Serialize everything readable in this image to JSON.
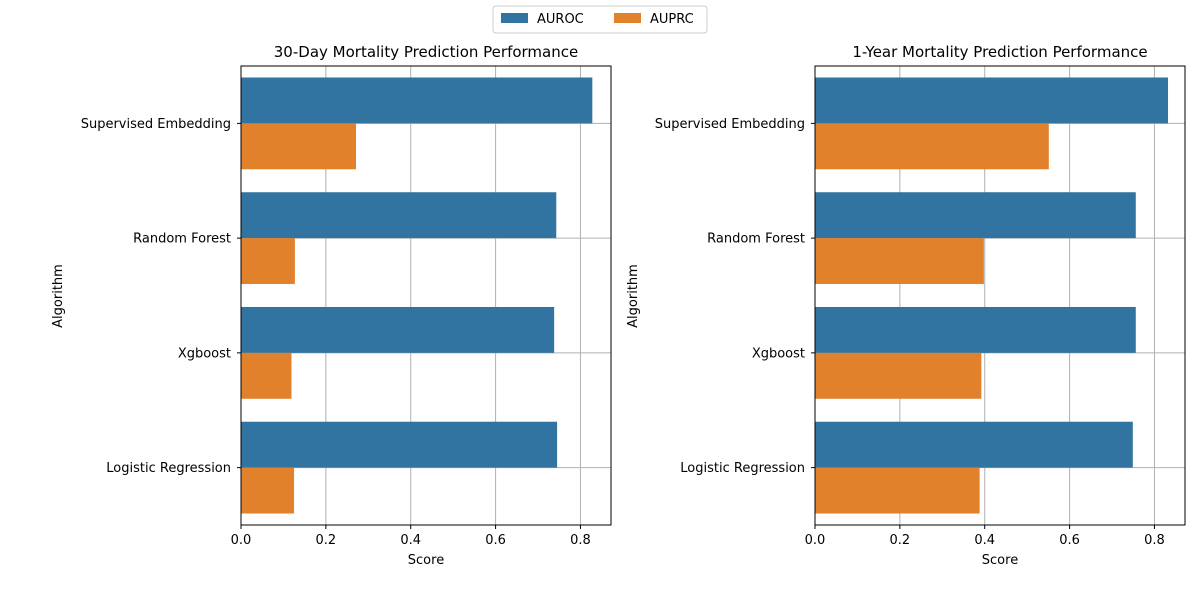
{
  "chart_data": [
    {
      "type": "bar",
      "orientation": "horizontal",
      "title": "30-Day Mortality Prediction Performance",
      "xlabel": "Score",
      "ylabel": "Algorithm",
      "categories": [
        "Supervised Embedding",
        "Random Forest",
        "Xgboost",
        "Logistic Regression"
      ],
      "series": [
        {
          "name": "AUROC",
          "color": "#3274a1",
          "values": [
            0.828,
            0.743,
            0.738,
            0.745
          ]
        },
        {
          "name": "AUPRC",
          "color": "#e1812c",
          "values": [
            0.271,
            0.127,
            0.119,
            0.125
          ]
        }
      ],
      "xlim": [
        0,
        0.872
      ],
      "xticks": [
        0.0,
        0.2,
        0.4,
        0.6,
        0.8
      ],
      "xtick_labels": [
        "0.0",
        "0.2",
        "0.4",
        "0.6",
        "0.8"
      ],
      "grid": true
    },
    {
      "type": "bar",
      "orientation": "horizontal",
      "title": "1-Year Mortality Prediction Performance",
      "xlabel": "Score",
      "ylabel": "Algorithm",
      "categories": [
        "Supervised Embedding",
        "Random Forest",
        "Xgboost",
        "Logistic Regression"
      ],
      "series": [
        {
          "name": "AUROC",
          "color": "#3274a1",
          "values": [
            0.832,
            0.756,
            0.756,
            0.749
          ]
        },
        {
          "name": "AUPRC",
          "color": "#e1812c",
          "values": [
            0.551,
            0.398,
            0.392,
            0.388
          ]
        }
      ],
      "xlim": [
        0,
        0.872
      ],
      "xticks": [
        0.0,
        0.2,
        0.4,
        0.6,
        0.8
      ],
      "xtick_labels": [
        "0.0",
        "0.2",
        "0.4",
        "0.6",
        "0.8"
      ],
      "grid": true
    }
  ],
  "legend": {
    "placement": "top-center",
    "entries": [
      {
        "name": "AUROC",
        "color": "#3274a1"
      },
      {
        "name": "AUPRC",
        "color": "#e1812c"
      }
    ]
  }
}
